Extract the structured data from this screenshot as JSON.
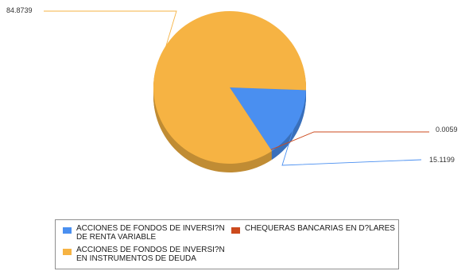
{
  "chart_data": {
    "type": "pie",
    "title": "",
    "categories": [
      "ACCIONES DE FONDOS DE INVERSI?N DE RENTA VARIABLE",
      "CHEQUERAS BANCARIAS EN D?LARES",
      "ACCIONES DE FONDOS DE INVERSI?N EN INSTRUMENTOS DE DEUDA"
    ],
    "values": [
      15.1199,
      0.0059,
      84.8739
    ],
    "data_labels": [
      "15.1199",
      "0.0059",
      "84.8739"
    ],
    "colors": [
      "#4a8ff0",
      "#cc4a1d",
      "#f6b343"
    ],
    "legend": {
      "placement": "bottom",
      "items": [
        {
          "label": "ACCIONES DE FONDOS DE INVERSI?N DE RENTA VARIABLE",
          "color": "#4a8ff0"
        },
        {
          "label": "CHEQUERAS BANCARIAS EN D?LARES",
          "color": "#cc4a1d"
        },
        {
          "label": "ACCIONES DE FONDOS DE INVERSI?N EN INSTRUMENTOS DE DEUDA",
          "color": "#f6b343"
        }
      ]
    }
  }
}
